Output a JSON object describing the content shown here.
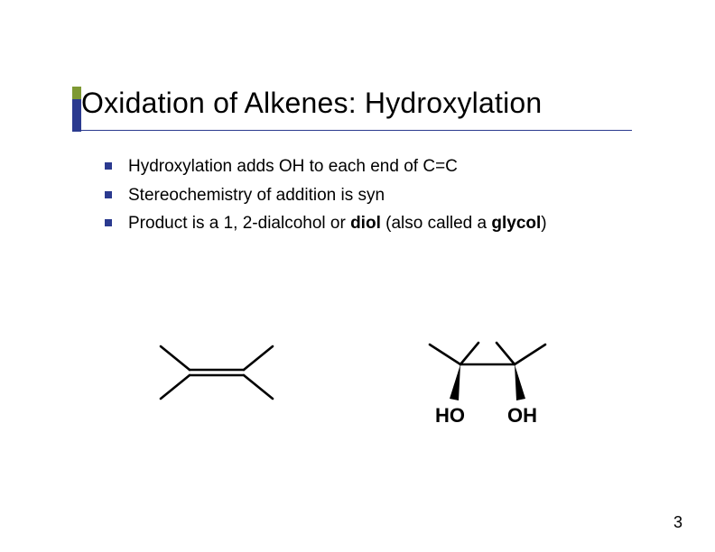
{
  "slide": {
    "title": "Oxidation of Alkenes: Hydroxylation",
    "title_fontsize": 32,
    "title_color": "#000000",
    "accent_colors": {
      "top": "#7e9933",
      "bottom": "#2b3a8f"
    },
    "underline_color": "#2b3a8f",
    "bullets": [
      {
        "text": "Hydroxylation adds OH to each end of C=C"
      },
      {
        "text": "Stereochemistry of addition is syn"
      },
      {
        "text_parts": [
          {
            "t": "Product is a 1, 2-dialcohol or ",
            "bold": false
          },
          {
            "t": "diol",
            "bold": true
          },
          {
            "t": " (also called a ",
            "bold": false
          },
          {
            "t": "glycol",
            "bold": true
          },
          {
            "t": ")",
            "bold": false
          }
        ]
      }
    ],
    "bullet_marker_color": "#2b3a8f",
    "bullet_fontsize": 19,
    "page_number": "3",
    "diagrams": {
      "alkene": {
        "type": "chemical-structure",
        "description": "2-butene (tetrasubstituted alkene skeletal)",
        "stroke": "#000000",
        "stroke_width": 2.4
      },
      "diol": {
        "type": "chemical-structure",
        "description": "2,3-butanediol with wedge bonds to OH groups",
        "labels": [
          "HO",
          "OH"
        ],
        "label_fontsize": 20,
        "label_weight": 700,
        "stroke": "#000000",
        "stroke_width": 2.4,
        "wedge_fill": "#000000"
      }
    },
    "background_color": "#ffffff"
  }
}
